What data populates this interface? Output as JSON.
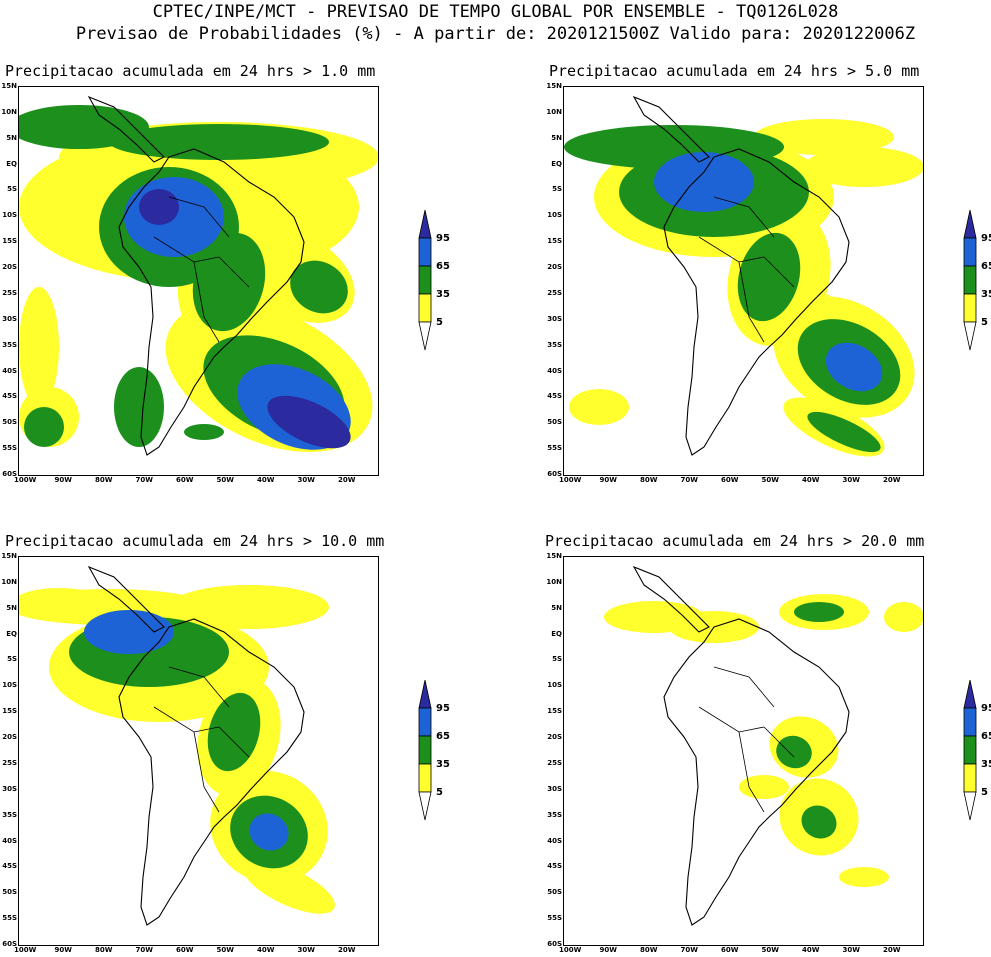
{
  "header": {
    "line1": "CPTEC/INPE/MCT - PREVISAO DE TEMPO GLOBAL POR ENSEMBLE - TQ0126L028",
    "line2": "Previsao de Probabilidades (%) -  A partir de: 2020121500Z  Valido para: 2020122006Z"
  },
  "panels": [
    {
      "title": "Precipitacao acumulada em 24 hrs > 1.0 mm"
    },
    {
      "title": "Precipitacao acumulada em 24 hrs > 5.0 mm"
    },
    {
      "title": "Precipitacao acumulada em 24 hrs > 10.0 mm"
    },
    {
      "title": "Precipitacao acumulada em 24 hrs > 20.0 mm"
    }
  ],
  "axes": {
    "lat_ticks": [
      "15N",
      "10N",
      "5N",
      "EQ",
      "5S",
      "10S",
      "15S",
      "20S",
      "25S",
      "30S",
      "35S",
      "40S",
      "45S",
      "50S",
      "55S",
      "60S"
    ],
    "lon_ticks": [
      "100W",
      "90W",
      "80W",
      "70W",
      "60W",
      "50W",
      "40W",
      "30W",
      "20W"
    ]
  },
  "legend": {
    "labels": [
      "95",
      "65",
      "35",
      "5"
    ],
    "colors": {
      "c95": "#2b2b9f",
      "c65": "#1e63d6",
      "c35": "#1c8f1c",
      "c5": "#ffff2e"
    }
  }
}
